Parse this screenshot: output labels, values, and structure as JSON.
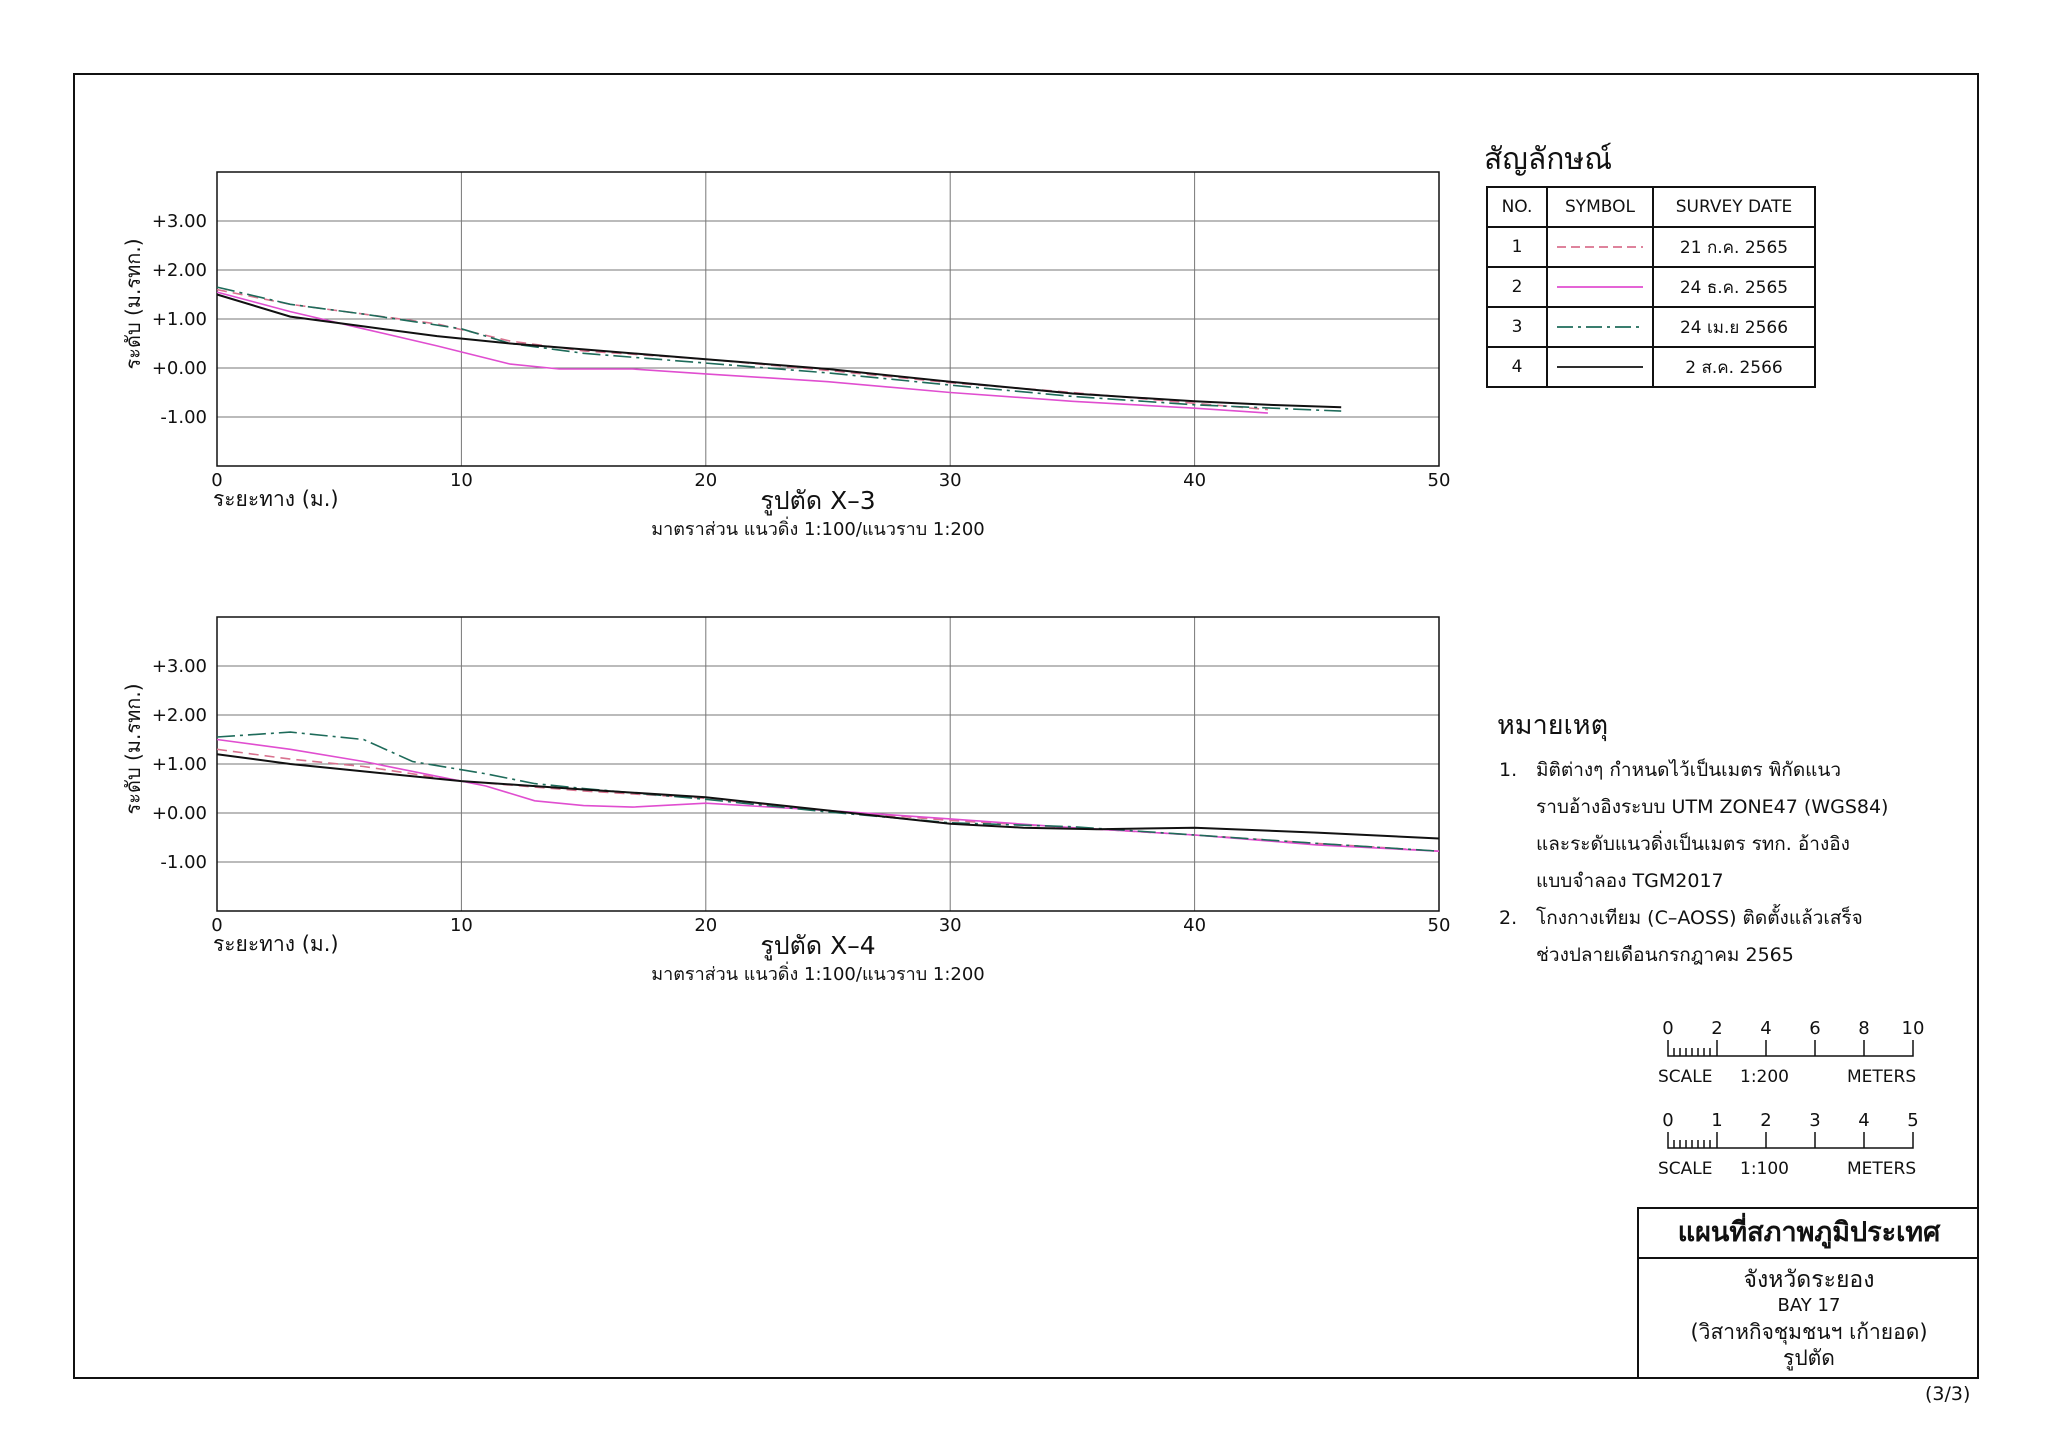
{
  "charts": [
    {
      "id": "x3",
      "title": "รูปตัด X–3",
      "subtitle": "มาตราส่วน แนวดิ่ง 1:100/แนวราบ 1:200",
      "xlabel": "ระยะทาง (ม.)",
      "ylabel": "ระดับ (ม.รทก.)",
      "xticks": [
        "0",
        "10",
        "20",
        "30",
        "40",
        "50"
      ],
      "yticks": [
        "+3.00",
        "+2.00",
        "+1.00",
        "+0.00",
        "-1.00"
      ]
    },
    {
      "id": "x4",
      "title": "รูปตัด X–4",
      "subtitle": "มาตราส่วน แนวดิ่ง 1:100/แนวราบ 1:200",
      "xlabel": "ระยะทาง (ม.)",
      "ylabel": "ระดับ (ม.รทก.)",
      "xticks": [
        "0",
        "10",
        "20",
        "30",
        "40",
        "50"
      ],
      "yticks": [
        "+3.00",
        "+2.00",
        "+1.00",
        "+0.00",
        "-1.00"
      ]
    }
  ],
  "chart_data": [
    {
      "type": "line",
      "title": "รูปตัด X–3",
      "xlabel": "ระยะทาง (ม.)",
      "ylabel": "ระดับ (ม.รทก.)",
      "xlim": [
        0,
        50
      ],
      "ylim": [
        -2,
        4
      ],
      "grid": true,
      "series": [
        {
          "name": "21 ก.ค. 2565",
          "color": "#d9728f",
          "dash": "10,6",
          "points": [
            [
              0,
              1.6
            ],
            [
              3,
              1.3
            ],
            [
              6,
              1.1
            ],
            [
              9,
              0.9
            ],
            [
              12,
              0.55
            ],
            [
              15,
              0.35
            ],
            [
              20,
              0.18
            ],
            [
              25,
              -0.05
            ],
            [
              30,
              -0.3
            ],
            [
              35,
              -0.5
            ],
            [
              40,
              -0.72
            ],
            [
              43,
              -0.85
            ]
          ]
        },
        {
          "name": "24 ธ.ค. 2565",
          "color": "#e04ed0",
          "dash": "",
          "points": [
            [
              0,
              1.55
            ],
            [
              3,
              1.15
            ],
            [
              6,
              0.8
            ],
            [
              9,
              0.45
            ],
            [
              12,
              0.08
            ],
            [
              14,
              -0.02
            ],
            [
              17,
              -0.02
            ],
            [
              20,
              -0.12
            ],
            [
              25,
              -0.28
            ],
            [
              30,
              -0.5
            ],
            [
              35,
              -0.68
            ],
            [
              40,
              -0.82
            ],
            [
              43,
              -0.92
            ]
          ]
        },
        {
          "name": "24 เม.ย 2566",
          "color": "#1e6b5a",
          "dash": "18,5,3,5",
          "points": [
            [
              0,
              1.65
            ],
            [
              3,
              1.3
            ],
            [
              6,
              1.1
            ],
            [
              8,
              0.95
            ],
            [
              10,
              0.8
            ],
            [
              12,
              0.5
            ],
            [
              15,
              0.3
            ],
            [
              20,
              0.1
            ],
            [
              25,
              -0.1
            ],
            [
              30,
              -0.35
            ],
            [
              35,
              -0.58
            ],
            [
              40,
              -0.75
            ],
            [
              46,
              -0.88
            ]
          ]
        },
        {
          "name": "2 ส.ค. 2566",
          "color": "#111111",
          "dash": "",
          "points": [
            [
              0,
              1.5
            ],
            [
              3,
              1.05
            ],
            [
              6,
              0.85
            ],
            [
              9,
              0.65
            ],
            [
              12,
              0.5
            ],
            [
              15,
              0.38
            ],
            [
              20,
              0.18
            ],
            [
              25,
              -0.02
            ],
            [
              30,
              -0.28
            ],
            [
              35,
              -0.52
            ],
            [
              40,
              -0.68
            ],
            [
              43,
              -0.75
            ],
            [
              46,
              -0.8
            ]
          ]
        }
      ]
    },
    {
      "type": "line",
      "title": "รูปตัด X–4",
      "xlabel": "ระยะทาง (ม.)",
      "ylabel": "ระดับ (ม.รทก.)",
      "xlim": [
        0,
        50
      ],
      "ylim": [
        -2,
        4
      ],
      "grid": true,
      "series": [
        {
          "name": "21 ก.ค. 2565",
          "color": "#d9728f",
          "dash": "10,6",
          "points": [
            [
              0,
              1.3
            ],
            [
              3,
              1.1
            ],
            [
              6,
              0.95
            ],
            [
              10,
              0.65
            ],
            [
              15,
              0.45
            ],
            [
              20,
              0.3
            ],
            [
              25,
              0.05
            ],
            [
              30,
              -0.15
            ],
            [
              35,
              -0.3
            ],
            [
              40,
              -0.45
            ],
            [
              45,
              -0.62
            ],
            [
              50,
              -0.78
            ]
          ]
        },
        {
          "name": "24 ธ.ค. 2565",
          "color": "#e04ed0",
          "dash": "",
          "points": [
            [
              0,
              1.5
            ],
            [
              3,
              1.3
            ],
            [
              6,
              1.05
            ],
            [
              9,
              0.75
            ],
            [
              11,
              0.55
            ],
            [
              13,
              0.25
            ],
            [
              15,
              0.15
            ],
            [
              17,
              0.12
            ],
            [
              20,
              0.2
            ],
            [
              25,
              0.05
            ],
            [
              30,
              -0.12
            ],
            [
              35,
              -0.3
            ],
            [
              40,
              -0.45
            ],
            [
              45,
              -0.65
            ],
            [
              50,
              -0.78
            ]
          ]
        },
        {
          "name": "24 เม.ย 2566",
          "color": "#1e6b5a",
          "dash": "18,5,3,5",
          "points": [
            [
              0,
              1.55
            ],
            [
              3,
              1.65
            ],
            [
              6,
              1.5
            ],
            [
              8,
              1.05
            ],
            [
              11,
              0.8
            ],
            [
              13,
              0.6
            ],
            [
              15,
              0.5
            ],
            [
              20,
              0.28
            ],
            [
              25,
              0.02
            ],
            [
              30,
              -0.2
            ],
            [
              35,
              -0.28
            ],
            [
              40,
              -0.45
            ],
            [
              45,
              -0.62
            ],
            [
              50,
              -0.78
            ]
          ]
        },
        {
          "name": "2 ส.ค. 2566",
          "color": "#111111",
          "dash": "",
          "points": [
            [
              0,
              1.2
            ],
            [
              3,
              1.0
            ],
            [
              6,
              0.85
            ],
            [
              10,
              0.65
            ],
            [
              15,
              0.48
            ],
            [
              20,
              0.32
            ],
            [
              25,
              0.05
            ],
            [
              30,
              -0.22
            ],
            [
              33,
              -0.3
            ],
            [
              36,
              -0.33
            ],
            [
              40,
              -0.3
            ],
            [
              45,
              -0.4
            ],
            [
              50,
              -0.52
            ]
          ]
        }
      ]
    }
  ],
  "legend": {
    "title": "สัญลักษณ์",
    "headers": [
      "NO.",
      "SYMBOL",
      "SURVEY DATE"
    ],
    "rows": [
      {
        "no": "1",
        "date": "21 ก.ค. 2565",
        "color": "#d9728f",
        "style": "dashed"
      },
      {
        "no": "2",
        "date": "24 ธ.ค. 2565",
        "color": "#e04ed0",
        "style": "solid"
      },
      {
        "no": "3",
        "date": "24 เม.ย 2566",
        "color": "#1e6b5a",
        "style": "dash-dot"
      },
      {
        "no": "4",
        "date": "2 ส.ค. 2566",
        "color": "#111111",
        "style": "solid"
      }
    ]
  },
  "notes": {
    "title": "หมายเหตุ",
    "items": [
      {
        "num": "1.",
        "lines": [
          "มิติต่างๆ กำหนดไว้เป็นเมตร พิกัดแนว",
          "ราบอ้างอิงระบบ UTM ZONE47 (WGS84)",
          "และระดับแนวดิ่งเป็นเมตร รทก. อ้างอิง",
          "แบบจำลอง TGM2017"
        ]
      },
      {
        "num": "2.",
        "lines": [
          "โกงกางเทียม (C–AOSS) ติดตั้งแล้วเสร็จ",
          "ช่วงปลายเดือนกรกฎาคม 2565"
        ]
      }
    ]
  },
  "scales": [
    {
      "ticks": [
        "0",
        "2",
        "4",
        "6",
        "8",
        "10"
      ],
      "scale_label": "SCALE",
      "ratio": "1:200",
      "unit": "METERS"
    },
    {
      "ticks": [
        "0",
        "1",
        "2",
        "3",
        "4",
        "5"
      ],
      "scale_label": "SCALE",
      "ratio": "1:100",
      "unit": "METERS"
    }
  ],
  "title_block": {
    "title": "แผนที่สภาพภูมิประเทศ",
    "province": "จังหวัดระยอง",
    "bay": "BAY 17",
    "community": "(วิสาหกิจชุมชนฯ เก้ายอด)",
    "sheet_type": "รูปตัด"
  },
  "page_number": "(3/3)"
}
